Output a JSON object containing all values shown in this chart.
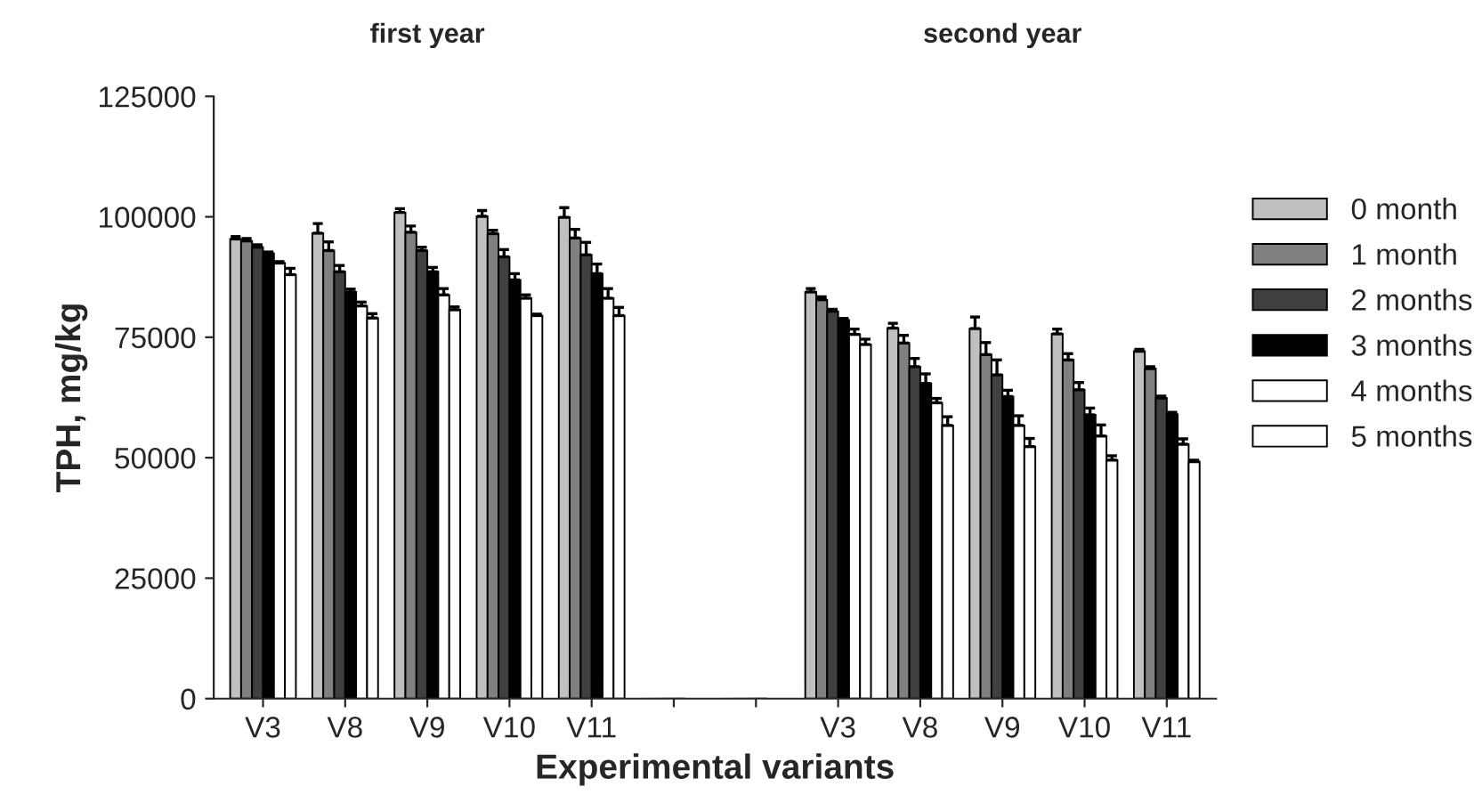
{
  "chart_data": {
    "type": "bar",
    "xlabel": "Experimental variants",
    "ylabel": "TPH, mg/kg",
    "annotations": [
      "first year",
      "second year"
    ],
    "categories": [
      "V3",
      "V8",
      "V9",
      "V10",
      "V11",
      null,
      null,
      "V3",
      "V8",
      "V9",
      "V10",
      "V11"
    ],
    "series": [
      {
        "name": "0 month",
        "color": "#c0c0c0",
        "values": [
          95400,
          96600,
          100900,
          100100,
          99900,
          0,
          0,
          84400,
          76900,
          76800,
          75700,
          72100
        ],
        "errors": [
          500,
          2000,
          800,
          1200,
          2000,
          null,
          null,
          700,
          1000,
          2400,
          1000,
          400
        ]
      },
      {
        "name": "1 month",
        "color": "#808080",
        "values": [
          95000,
          93000,
          96800,
          96500,
          95600,
          0,
          0,
          82800,
          73800,
          71400,
          70300,
          68500
        ],
        "errors": [
          500,
          1800,
          1300,
          700,
          1800,
          null,
          null,
          600,
          1600,
          2500,
          1300,
          400
        ]
      },
      {
        "name": "2 months",
        "color": "#404040",
        "values": [
          93700,
          88600,
          93000,
          91700,
          92100,
          0,
          0,
          80400,
          68900,
          67200,
          64100,
          62400
        ],
        "errors": [
          500,
          1300,
          700,
          1500,
          2600,
          null,
          null,
          400,
          1700,
          3100,
          1500,
          400
        ]
      },
      {
        "name": "3 months",
        "color": "#000000",
        "values": [
          92400,
          84400,
          88600,
          86900,
          88200,
          0,
          0,
          78600,
          65400,
          62700,
          58900,
          59000
        ],
        "errors": [
          300,
          600,
          900,
          1300,
          2000,
          null,
          null,
          300,
          2000,
          1300,
          1400,
          400
        ]
      },
      {
        "name": "4 months",
        "color": "#ffffff",
        "values": [
          90400,
          81500,
          83800,
          83100,
          83100,
          0,
          0,
          75600,
          61400,
          56700,
          54500,
          52800
        ],
        "errors": [
          300,
          800,
          1300,
          700,
          2000,
          null,
          null,
          1100,
          900,
          2000,
          2300,
          1100
        ]
      },
      {
        "name": "5 months",
        "color": "#ffffff",
        "values": [
          88000,
          79000,
          80700,
          79500,
          79500,
          0,
          0,
          73500,
          56700,
          52300,
          49500,
          49200
        ],
        "errors": [
          1300,
          900,
          600,
          300,
          1700,
          null,
          null,
          1100,
          1800,
          1700,
          900,
          300
        ]
      }
    ],
    "ylim": [
      0,
      125000
    ],
    "yticks": [
      0,
      25000,
      50000,
      75000,
      100000,
      125000
    ],
    "grid": false,
    "legend": "right"
  }
}
